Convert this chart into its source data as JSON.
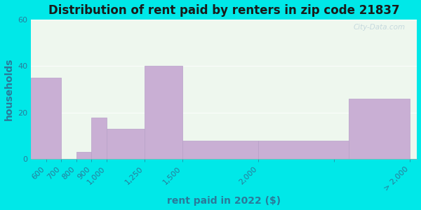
{
  "title": "Distribution of rent paid by renters in zip code 21837",
  "xlabel": "rent paid in 2022 ($)",
  "ylabel": "households",
  "tick_positions": [
    600,
    700,
    800,
    900,
    1000,
    1250,
    1500,
    2000,
    2500,
    3000
  ],
  "tick_labels": [
    "600",
    "700",
    "800",
    "900",
    "1,000",
    "1,250",
    "1,500",
    "2,000",
    "",
    "> 2,000"
  ],
  "bar_left_edges": [
    500,
    700,
    800,
    900,
    1000,
    1250,
    1500,
    2000,
    2600
  ],
  "bar_right_edges": [
    700,
    800,
    900,
    1000,
    1250,
    1500,
    2000,
    2600,
    3000
  ],
  "bar_heights": [
    35,
    0,
    3,
    18,
    13,
    40,
    8,
    8,
    26
  ],
  "bar_color": "#c9afd4",
  "bar_edgecolor": "#b8a0c8",
  "ylim": [
    0,
    60
  ],
  "xlim": [
    500,
    3050
  ],
  "yticks": [
    0,
    20,
    40,
    60
  ],
  "background_outer": "#00e8e8",
  "background_inner": "#eef7ee",
  "title_fontsize": 12,
  "axis_label_fontsize": 10,
  "tick_fontsize": 8,
  "watermark": "City-Data.com"
}
